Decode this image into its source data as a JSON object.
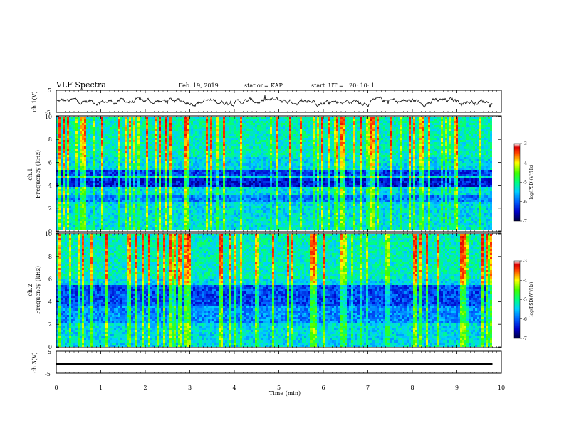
{
  "header": {
    "title": "VLF Spectra",
    "date": "Feb. 19, 2019",
    "station": "station= KAP",
    "start": "start  UT =   20: 10: 1"
  },
  "chart_data": [
    {
      "type": "line",
      "ylabel": "ch.1(V)",
      "xlim": [
        0,
        10
      ],
      "ylim": [
        -5,
        5
      ],
      "yticks": [
        "5",
        "-5"
      ],
      "description_values": {
        "x_min": [
          0,
          10
        ],
        "mean": 0.0,
        "range": [
          -2.5,
          2.5
        ]
      },
      "series": [
        {
          "values": "continuous noisy waveform between about -2.5 and 2.5 V over 0–9.8 min"
        }
      ]
    },
    {
      "type": "heatmap",
      "ylabel": "ch.1\nFrequency (kHz)",
      "ylabel_lines": [
        "ch.1",
        "Frequency (kHz)"
      ],
      "xlim": [
        0,
        10
      ],
      "ylim": [
        0,
        10
      ],
      "yticks": [
        "0",
        "2",
        "4",
        "6",
        "8",
        "10"
      ],
      "colorbar": {
        "label": "log(PSD)(V²/Hz)",
        "min": -7,
        "max": -3,
        "ticks": [
          "-3",
          "-4",
          "-5",
          "-6",
          "-7"
        ]
      },
      "data_end_min": 9.8
    },
    {
      "type": "heatmap",
      "ylabel_lines": [
        "ch.2",
        "Frequency (kHz)"
      ],
      "xlim": [
        0,
        10
      ],
      "ylim": [
        0,
        10
      ],
      "yticks": [
        "0",
        "2",
        "4",
        "6",
        "8",
        "10"
      ],
      "colorbar": {
        "label": "log(PSD)(V²/Hz)",
        "min": -7,
        "max": -3,
        "ticks": [
          "-3",
          "-4",
          "-5",
          "-6",
          "-7"
        ]
      },
      "data_end_min": 9.8
    },
    {
      "type": "line",
      "ylabel": "ch.3(V)",
      "xlim": [
        0,
        10
      ],
      "ylim": [
        -5,
        5
      ],
      "yticks": [
        "5",
        "-5"
      ],
      "series": [
        {
          "values": [
            -1.8,
            -1.8
          ],
          "x": [
            0,
            9.8
          ]
        }
      ]
    }
  ],
  "xaxis": {
    "label": "Time (min)",
    "ticks": [
      "0",
      "1",
      "2",
      "3",
      "4",
      "5",
      "6",
      "7",
      "8",
      "9",
      "10"
    ]
  }
}
